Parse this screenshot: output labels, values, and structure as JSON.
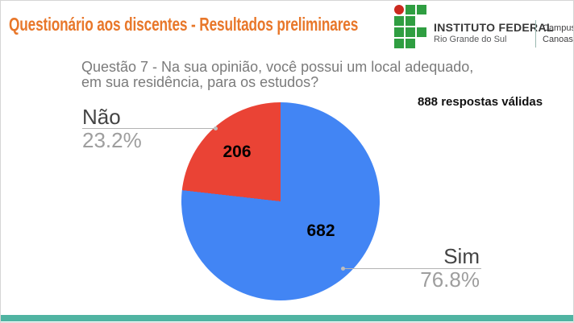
{
  "slide": {
    "title": "Questionário aos discentes - Resultados preliminares"
  },
  "logo": {
    "institution": "INSTITUTO FEDERAL",
    "region": "Rio Grande do Sul",
    "campus_label": "Campus",
    "campus_name": "Canoas"
  },
  "chart_data": {
    "type": "pie",
    "title": "Questão 7 - Na sua opinião, você possui um local adequado,\nem sua residência, para os estudos?",
    "annotation": "888 respostas válidas",
    "total_responses": 888,
    "start_angle": 0,
    "direction": "clockwise",
    "legend_position": "callouts",
    "slices": [
      {
        "label": "Sim",
        "value": 682,
        "percent": 76.8,
        "percent_label": "76.8%",
        "color": "#4285F4"
      },
      {
        "label": "Não",
        "value": 206,
        "percent": 23.2,
        "percent_label": "23.2%",
        "color": "#EA4335"
      }
    ]
  },
  "colors": {
    "title": "#E8772A",
    "accent_bar": "#50B4A2"
  }
}
